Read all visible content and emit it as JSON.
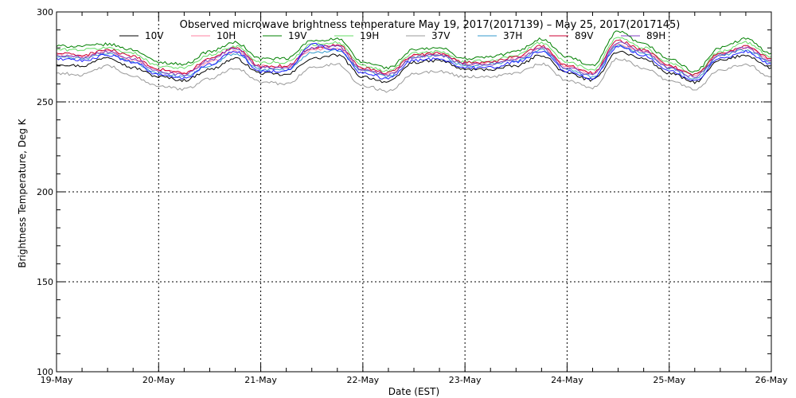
{
  "chart_data": {
    "type": "line",
    "title": "Observed microwave brightness temperature May 19, 2017(2017139) – May 25, 2017(2017145)",
    "xlabel": "Date (EST)",
    "ylabel": "Brightness Temperature, Deg K",
    "xlim": [
      "2017-05-19",
      "2017-05-26"
    ],
    "ylim": [
      100,
      300
    ],
    "grid": true,
    "legend_position": "top",
    "x_tick_labels": [
      "19-May",
      "20-May",
      "21-May",
      "22-May",
      "23-May",
      "24-May",
      "25-May",
      "26-May"
    ],
    "y_tick_labels": [
      "100",
      "150",
      "200",
      "250",
      "300"
    ],
    "x": [
      "2017-05-19 00:00",
      "2017-05-19 06:00",
      "2017-05-19 12:00",
      "2017-05-19 18:00",
      "2017-05-20 00:00",
      "2017-05-20 06:00",
      "2017-05-20 12:00",
      "2017-05-20 18:00",
      "2017-05-21 00:00",
      "2017-05-21 06:00",
      "2017-05-21 12:00",
      "2017-05-21 18:00",
      "2017-05-22 00:00",
      "2017-05-22 06:00",
      "2017-05-22 12:00",
      "2017-05-22 18:00",
      "2017-05-23 00:00",
      "2017-05-23 06:00",
      "2017-05-23 12:00",
      "2017-05-23 18:00",
      "2017-05-24 00:00",
      "2017-05-24 06:00",
      "2017-05-24 12:00",
      "2017-05-24 18:00",
      "2017-05-25 00:00",
      "2017-05-25 06:00",
      "2017-05-25 12:00",
      "2017-05-25 18:00",
      "2017-05-26 00:00"
    ],
    "series": [
      {
        "name": "10V",
        "color": "#000000",
        "values": [
          271,
          270,
          275,
          269,
          264,
          262,
          268,
          274,
          266,
          265,
          274,
          276,
          264,
          261,
          272,
          273,
          268,
          268,
          270,
          276,
          266,
          262,
          278,
          274,
          266,
          261,
          273,
          276,
          269
        ]
      },
      {
        "name": "10H",
        "color": "#ff80a0",
        "values": [
          276,
          275,
          278,
          273,
          268,
          266,
          272,
          278,
          270,
          269,
          279,
          280,
          268,
          265,
          276,
          277,
          271,
          272,
          274,
          280,
          270,
          266,
          282,
          278,
          270,
          265,
          277,
          280,
          273
        ]
      },
      {
        "name": "19V",
        "color": "#008000",
        "values": [
          281,
          281,
          282,
          279,
          272,
          271,
          278,
          283,
          274,
          274,
          284,
          285,
          272,
          269,
          279,
          280,
          274,
          275,
          278,
          285,
          275,
          270,
          289,
          282,
          274,
          267,
          280,
          285,
          277
        ]
      },
      {
        "name": "19H",
        "color": "#66dd66",
        "values": [
          279,
          279,
          280,
          277,
          270,
          269,
          276,
          281,
          272,
          272,
          282,
          283,
          270,
          267,
          277,
          278,
          272,
          273,
          276,
          283,
          272,
          268,
          286,
          280,
          272,
          265,
          278,
          283,
          275
        ]
      },
      {
        "name": "37V",
        "color": "#999999",
        "values": [
          266,
          265,
          270,
          264,
          259,
          257,
          263,
          269,
          261,
          260,
          269,
          271,
          259,
          256,
          266,
          267,
          264,
          264,
          266,
          271,
          262,
          258,
          274,
          269,
          262,
          257,
          268,
          271,
          264
        ]
      },
      {
        "name": "37H",
        "color": "#3399cc",
        "values": [
          275,
          274,
          277,
          272,
          266,
          264,
          270,
          277,
          268,
          268,
          277,
          279,
          267,
          264,
          275,
          276,
          270,
          271,
          273,
          279,
          268,
          264,
          281,
          277,
          269,
          263,
          276,
          279,
          272
        ]
      },
      {
        "name": "89V",
        "color": "#cc0033",
        "values": [
          277,
          276,
          279,
          275,
          268,
          266,
          274,
          280,
          270,
          270,
          280,
          282,
          269,
          266,
          276,
          277,
          272,
          272,
          275,
          281,
          270,
          266,
          284,
          279,
          270,
          265,
          277,
          281,
          274
        ]
      },
      {
        "name": "89H",
        "color": "#7f3fbf",
        "values": [
          276,
          275,
          278,
          274,
          267,
          265,
          273,
          280,
          269,
          269,
          280,
          281,
          268,
          265,
          275,
          276,
          271,
          271,
          274,
          280,
          269,
          265,
          283,
          278,
          269,
          264,
          276,
          280,
          273
        ]
      },
      {
        "name": "",
        "color": "#2020ff",
        "values": [
          274,
          273,
          276,
          272,
          265,
          263,
          271,
          278,
          267,
          267,
          282,
          279,
          266,
          263,
          273,
          274,
          269,
          269,
          272,
          278,
          267,
          263,
          281,
          276,
          267,
          262,
          274,
          278,
          271
        ]
      }
    ]
  }
}
